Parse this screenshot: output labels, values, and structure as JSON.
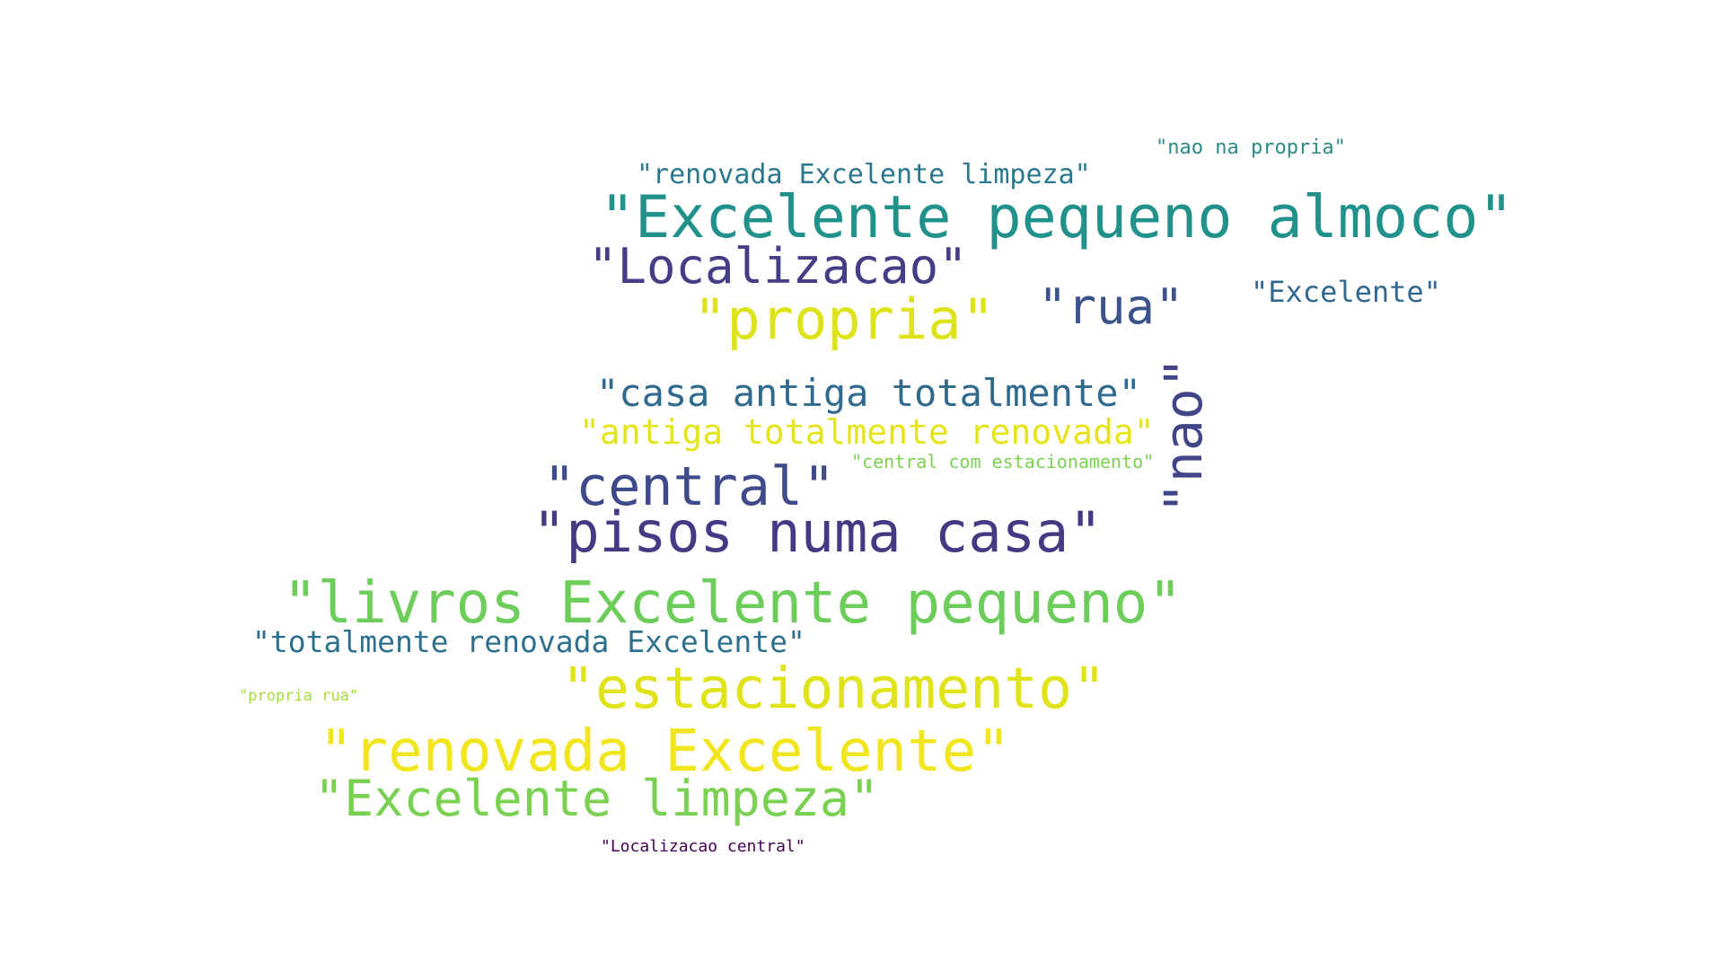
{
  "words": [
    {
      "text": "\"nao na propria\"",
      "color": "#2a8a88"
    },
    {
      "text": "\"renovada Excelente limpeza\"",
      "color": "#2a788e"
    },
    {
      "text": "\"Excelente pequeno almoco\"",
      "color": "#21918c"
    },
    {
      "text": "\"Localizacao\"",
      "color": "#433e85"
    },
    {
      "text": "\"Excelente\"",
      "color": "#31688e"
    },
    {
      "text": "\"propria\"",
      "color": "#dde318"
    },
    {
      "text": "\"rua\"",
      "color": "#3b528b"
    },
    {
      "text": "\"nao\"",
      "color": "#414487"
    },
    {
      "text": "\"casa antiga totalmente\"",
      "color": "#306a8e"
    },
    {
      "text": "\"antiga totalmente renovada\"",
      "color": "#e5e419"
    },
    {
      "text": "\"central com estacionamento\"",
      "color": "#7ad151"
    },
    {
      "text": "\"central\"",
      "color": "#3e4a89"
    },
    {
      "text": "\"pisos numa casa\"",
      "color": "#443a83"
    },
    {
      "text": "\"livros Excelente pequeno\"",
      "color": "#6ccd5a"
    },
    {
      "text": "\"totalmente renovada Excelente\"",
      "color": "#2d708e"
    },
    {
      "text": "\"estacionamento\"",
      "color": "#dfe318"
    },
    {
      "text": "\"propria rua\"",
      "color": "#a5db36"
    },
    {
      "text": "\"renovada Excelente\"",
      "color": "#f1e51d"
    },
    {
      "text": "\"Excelente limpeza\"",
      "color": "#7ad151"
    },
    {
      "text": "\"Localizacao central\"",
      "color": "#440154"
    }
  ]
}
